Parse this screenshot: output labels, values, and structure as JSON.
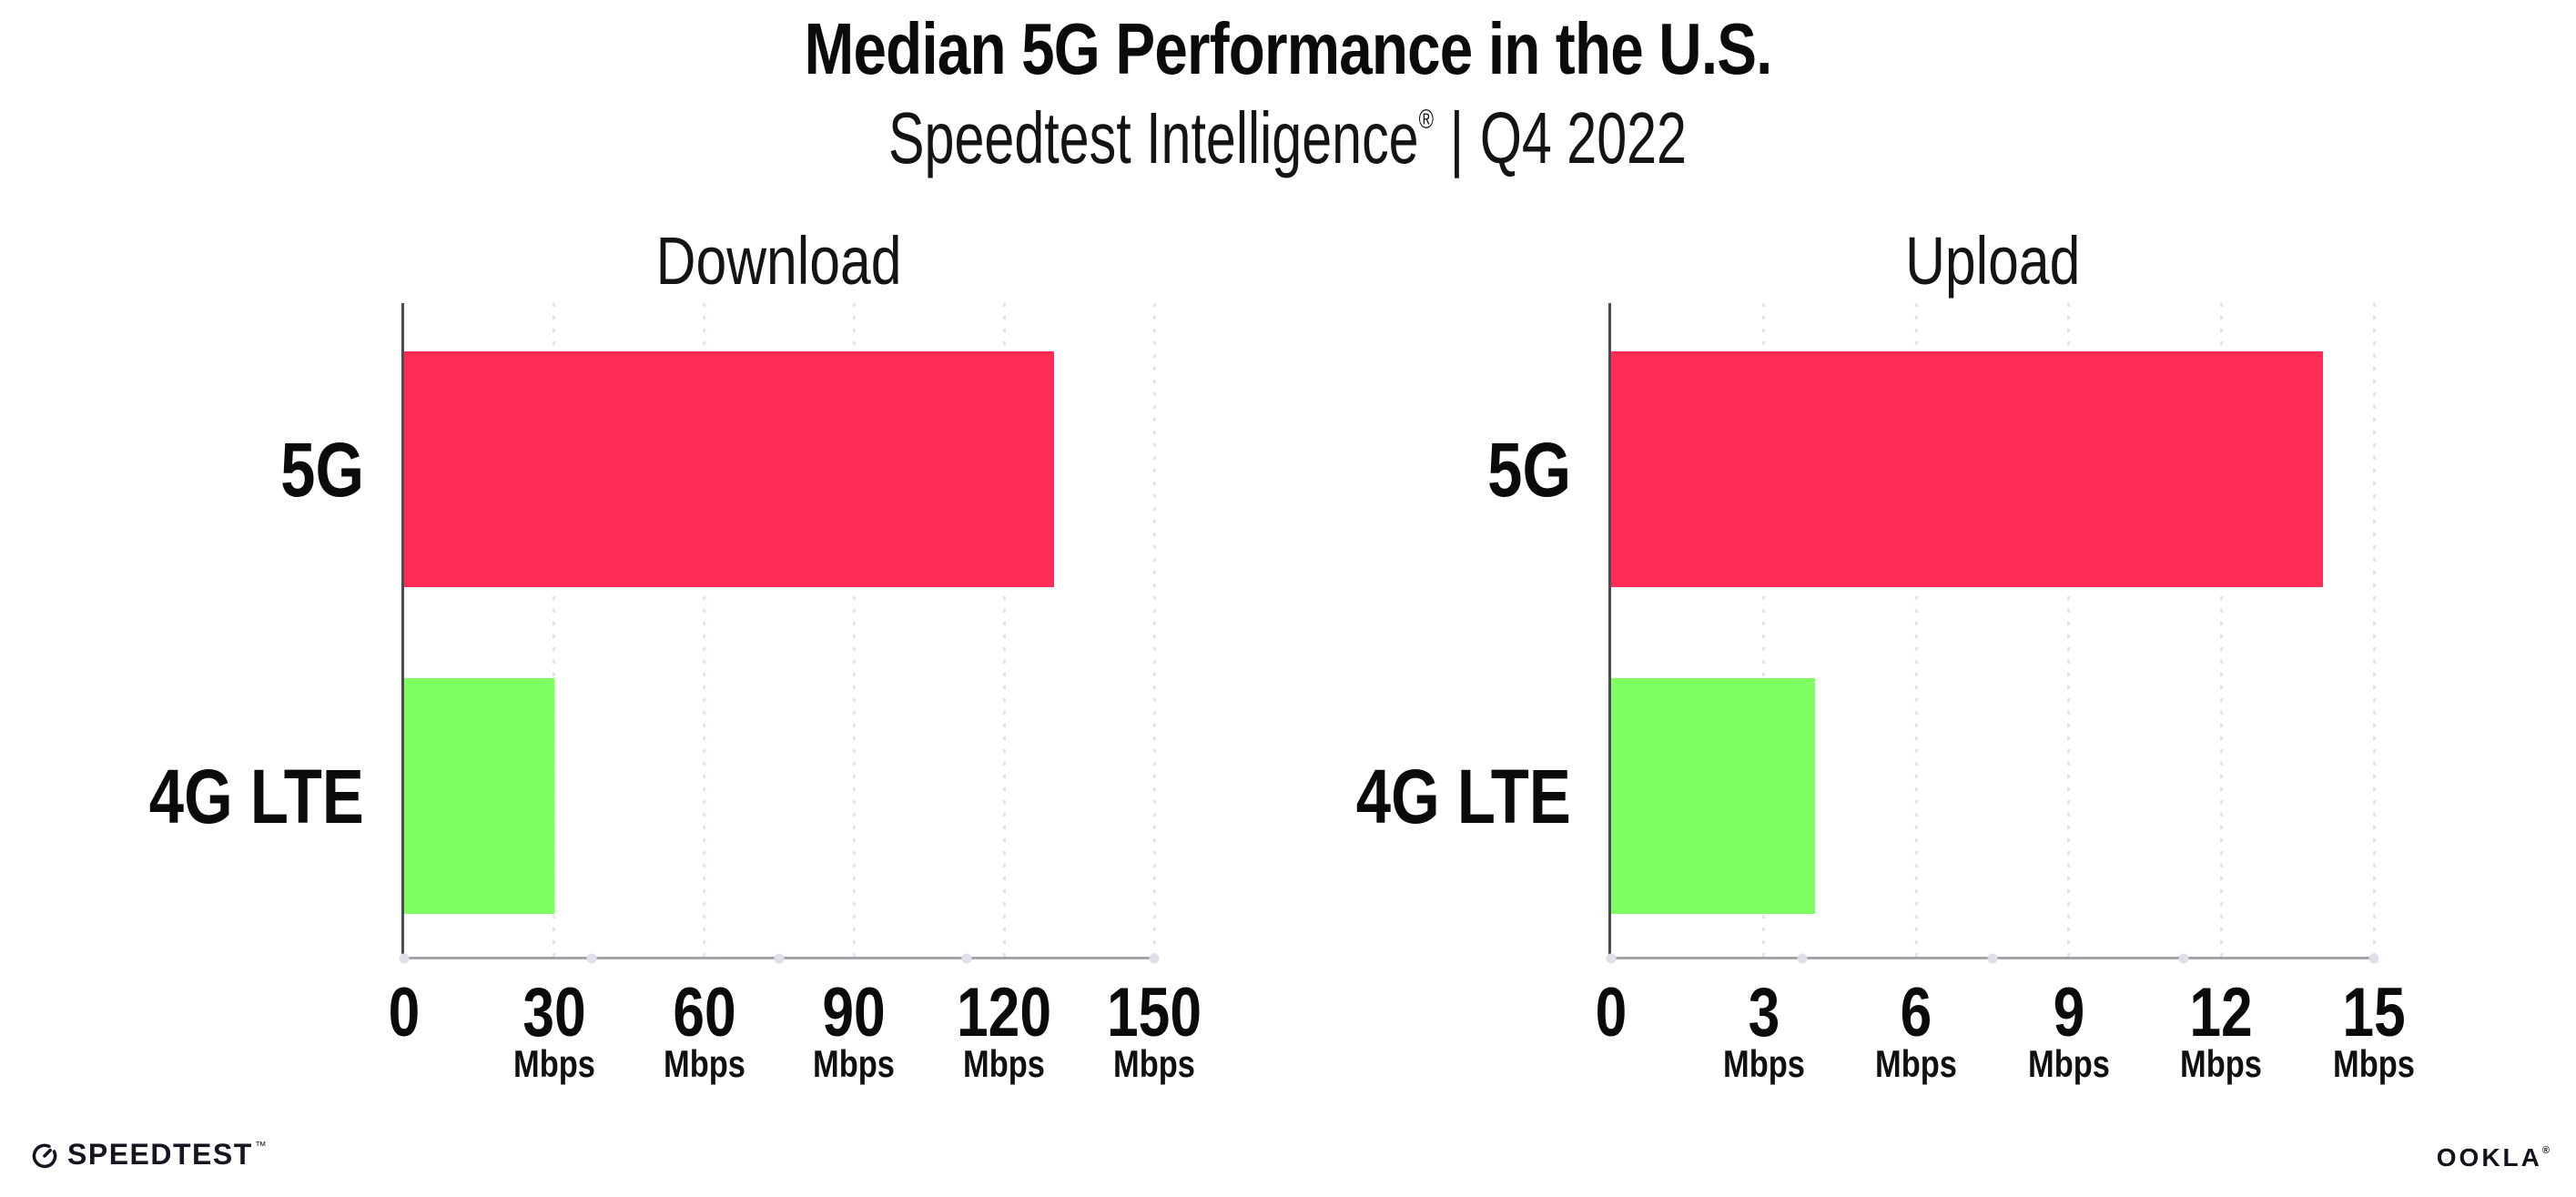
{
  "page": {
    "title": "Median 5G Performance in the U.S.",
    "subtitle": {
      "brand": "Speedtest Intelligence",
      "registered_mark": "®",
      "separator": "|",
      "period": "Q4 2022"
    },
    "background_color": "#ffffff"
  },
  "colors": {
    "bar_5g": "#ff2d55",
    "bar_4g_lte": "#7ffe63",
    "gridline": "#e3e3ee",
    "x_axis_line": "#a3a3ab",
    "y_axis_line": "#4b4b55",
    "axis_dot": "#dfdfea",
    "text_primary": "#0b0b0d"
  },
  "chart_data": [
    {
      "type": "bar",
      "orientation": "horizontal",
      "title": "Download",
      "categories": [
        "5G",
        "4G LTE"
      ],
      "values": [
        130,
        30
      ],
      "unit": "Mbps",
      "xlim": [
        0,
        150
      ],
      "xticks": [
        0,
        30,
        60,
        90,
        120,
        150
      ],
      "bar_colors": [
        "#ff2d55",
        "#7ffe63"
      ],
      "grid": "vertical-dotted",
      "legend": "none"
    },
    {
      "type": "bar",
      "orientation": "horizontal",
      "title": "Upload",
      "categories": [
        "5G",
        "4G LTE"
      ],
      "values": [
        14,
        4
      ],
      "unit": "Mbps",
      "xlim": [
        0,
        15
      ],
      "xticks": [
        0,
        3,
        6,
        9,
        12,
        15
      ],
      "bar_colors": [
        "#ff2d55",
        "#7ffe63"
      ],
      "grid": "vertical-dotted",
      "legend": "none"
    }
  ],
  "footer": {
    "speedtest_label": "SPEEDTEST",
    "speedtest_trademark": "™",
    "ookla_label": "OOKLA",
    "ookla_registered": "®"
  }
}
